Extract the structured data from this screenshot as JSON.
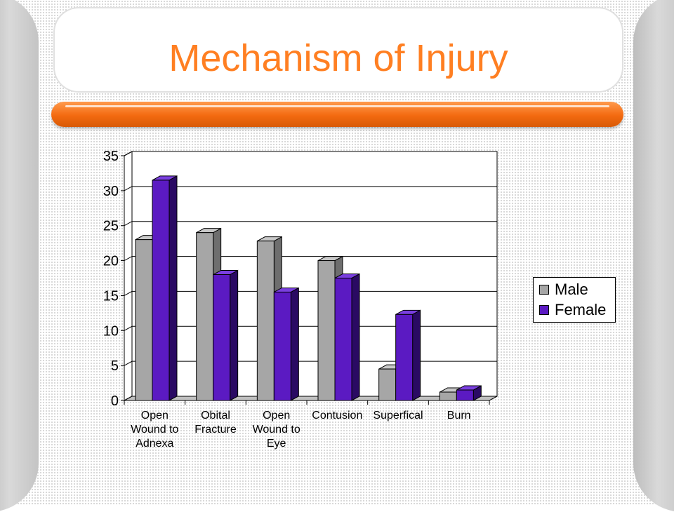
{
  "slide": {
    "title": "Mechanism of Injury"
  },
  "colors": {
    "title_text": "#ff7f22",
    "bar_accent": "#f36a10",
    "male": "#a6a6a6",
    "female": "#5b1ac2"
  },
  "chart_data": {
    "type": "bar",
    "categories": [
      "Open Wound to Adnexa",
      "Obital Fracture",
      "Open Wound to Eye",
      "Contusion",
      "Superfical",
      "Burn"
    ],
    "category_label_lines": [
      [
        "Open",
        "Wound to",
        "Adnexa"
      ],
      [
        "Obital",
        "Fracture"
      ],
      [
        "Open",
        "Wound to",
        "Eye"
      ],
      [
        "Contusion"
      ],
      [
        "Superfical"
      ],
      [
        "Burn"
      ]
    ],
    "series": [
      {
        "name": "Male",
        "values": [
          23,
          24,
          22.8,
          20,
          4.5,
          1.2
        ]
      },
      {
        "name": "Female",
        "values": [
          31.5,
          18,
          15.5,
          17.5,
          12.3,
          1.5
        ]
      }
    ],
    "ylim": [
      0,
      35
    ],
    "yticks": [
      "0",
      "5",
      "10",
      "15",
      "20",
      "25",
      "30",
      "35"
    ],
    "grid": true,
    "legend_position": "right",
    "style": "3d-clustered-column"
  }
}
